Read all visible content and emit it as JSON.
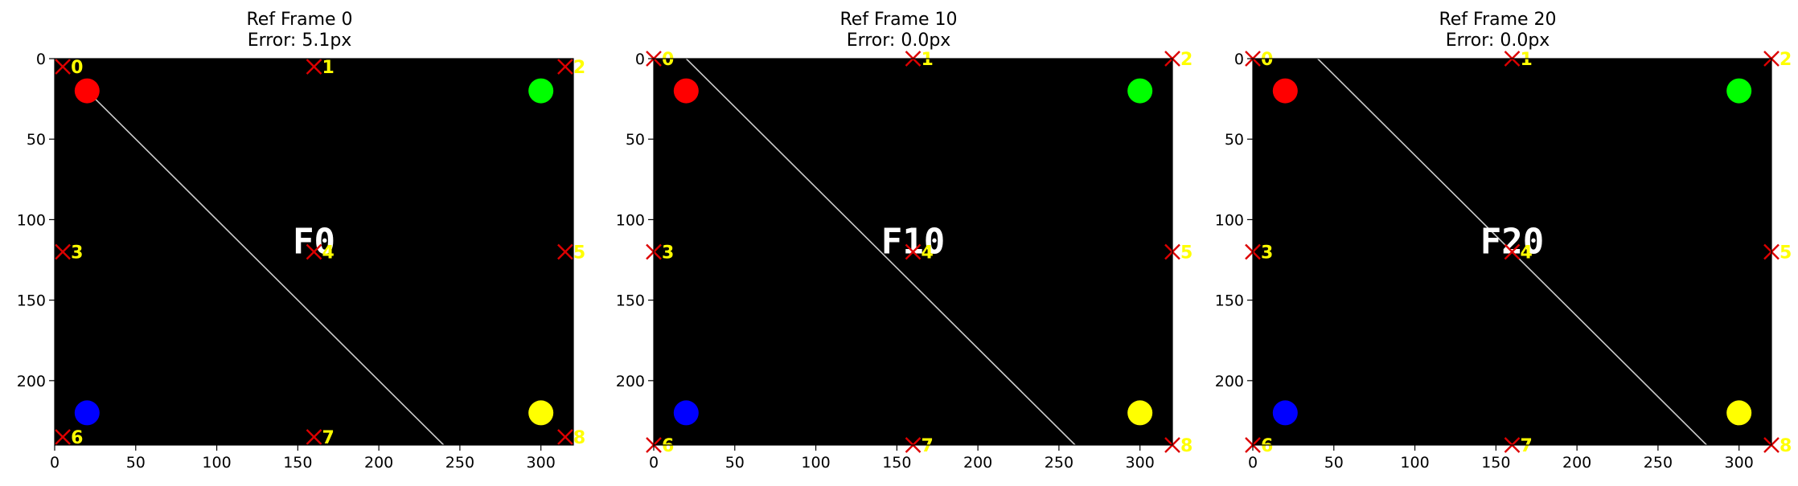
{
  "chart_data": [
    {
      "type": "image",
      "title_line1": "Ref Frame 0",
      "title_line2": "Error: 5.1px",
      "frame_label": "F0",
      "line": {
        "x1": 20,
        "y1": 20,
        "x2": 240,
        "y2": 240
      },
      "markers": [
        {
          "label": "0",
          "x": 5,
          "y": 5
        },
        {
          "label": "1",
          "x": 160,
          "y": 5
        },
        {
          "label": "2",
          "x": 315,
          "y": 5
        },
        {
          "label": "3",
          "x": 5,
          "y": 120
        },
        {
          "label": "4",
          "x": 160,
          "y": 120
        },
        {
          "label": "5",
          "x": 315,
          "y": 120
        },
        {
          "label": "6",
          "x": 5,
          "y": 235
        },
        {
          "label": "7",
          "x": 160,
          "y": 235
        },
        {
          "label": "8",
          "x": 315,
          "y": 235
        }
      ]
    },
    {
      "type": "image",
      "title_line1": "Ref Frame 10",
      "title_line2": "Error: 0.0px",
      "frame_label": "F10",
      "line": {
        "x1": 20,
        "y1": 0,
        "x2": 260,
        "y2": 240
      },
      "markers": [
        {
          "label": "0",
          "x": 0,
          "y": 0
        },
        {
          "label": "1",
          "x": 160,
          "y": 0
        },
        {
          "label": "2",
          "x": 320,
          "y": 0
        },
        {
          "label": "3",
          "x": 0,
          "y": 120
        },
        {
          "label": "4",
          "x": 160,
          "y": 120
        },
        {
          "label": "5",
          "x": 320,
          "y": 120
        },
        {
          "label": "6",
          "x": 0,
          "y": 240
        },
        {
          "label": "7",
          "x": 160,
          "y": 240
        },
        {
          "label": "8",
          "x": 320,
          "y": 240
        }
      ]
    },
    {
      "type": "image",
      "title_line1": "Ref Frame 20",
      "title_line2": "Error: 0.0px",
      "frame_label": "F20",
      "line": {
        "x1": 40,
        "y1": 0,
        "x2": 280,
        "y2": 240
      },
      "markers": [
        {
          "label": "0",
          "x": 0,
          "y": 0
        },
        {
          "label": "1",
          "x": 160,
          "y": 0
        },
        {
          "label": "2",
          "x": 320,
          "y": 0
        },
        {
          "label": "3",
          "x": 0,
          "y": 120
        },
        {
          "label": "4",
          "x": 160,
          "y": 120
        },
        {
          "label": "5",
          "x": 320,
          "y": 120
        },
        {
          "label": "6",
          "x": 0,
          "y": 240
        },
        {
          "label": "7",
          "x": 160,
          "y": 240
        },
        {
          "label": "8",
          "x": 320,
          "y": 240
        }
      ]
    }
  ],
  "shared": {
    "xlim": [
      0,
      320
    ],
    "ylim": [
      0,
      240
    ],
    "y_inverted": true,
    "xticks": [
      0,
      50,
      100,
      150,
      200,
      250,
      300
    ],
    "yticks": [
      0,
      50,
      100,
      150,
      200
    ],
    "circles": [
      {
        "x": 20,
        "y": 20,
        "color": "#ff0000"
      },
      {
        "x": 300,
        "y": 20,
        "color": "#00ff00"
      },
      {
        "x": 20,
        "y": 220,
        "color": "#0000ff"
      },
      {
        "x": 300,
        "y": 220,
        "color": "#ffff00"
      }
    ],
    "frame_text_pos": {
      "x": 160,
      "y": 112
    },
    "colors": {
      "background": "#000000",
      "marker": "#dd0000",
      "marker_label": "#ffff00",
      "line": "#cccccc"
    }
  }
}
